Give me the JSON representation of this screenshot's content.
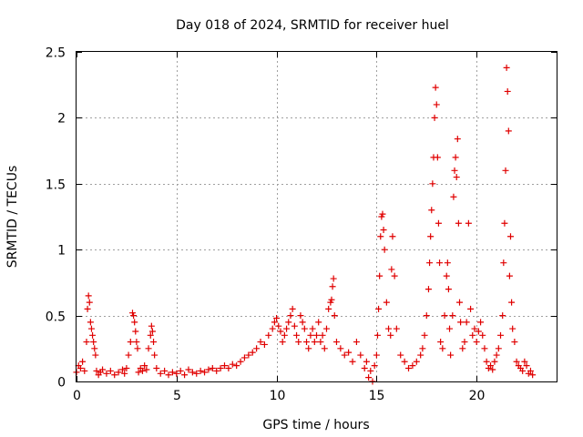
{
  "chart_data": {
    "type": "scatter",
    "title": "Day 018 of 2024, SRMTID for receiver huel",
    "xlabel": "GPS time / hours",
    "ylabel": "SRMTID / TECUs",
    "xlim": [
      0,
      24
    ],
    "ylim": [
      0,
      2.5
    ],
    "xticks": [
      0,
      5,
      10,
      15,
      20
    ],
    "xtick_labels": [
      "0",
      "5",
      "10",
      "15",
      "20"
    ],
    "yticks": [
      0,
      0.5,
      1,
      1.5,
      2,
      2.5
    ],
    "ytick_labels": [
      "0",
      "0.5",
      "1",
      "1.5",
      "2",
      "2.5"
    ],
    "grid": true,
    "marker": "+",
    "color": "#e00000",
    "series": [
      {
        "name": "SRMTID",
        "x": [
          0.0,
          0.1,
          0.2,
          0.3,
          0.4,
          0.5,
          0.55,
          0.6,
          0.65,
          0.7,
          0.75,
          0.8,
          0.85,
          0.9,
          0.95,
          1.0,
          1.1,
          1.2,
          1.3,
          1.5,
          1.7,
          1.9,
          2.1,
          2.3,
          2.4,
          2.5,
          2.6,
          2.7,
          2.8,
          2.85,
          2.9,
          2.95,
          3.0,
          3.05,
          3.1,
          3.2,
          3.3,
          3.4,
          3.5,
          3.6,
          3.7,
          3.75,
          3.8,
          3.85,
          3.9,
          4.0,
          4.2,
          4.4,
          4.6,
          4.8,
          5.0,
          5.2,
          5.4,
          5.6,
          5.8,
          6.0,
          6.2,
          6.4,
          6.6,
          6.8,
          7.0,
          7.2,
          7.4,
          7.6,
          7.8,
          8.0,
          8.2,
          8.4,
          8.6,
          8.8,
          9.0,
          9.2,
          9.4,
          9.6,
          9.8,
          9.9,
          10.0,
          10.1,
          10.2,
          10.3,
          10.4,
          10.5,
          10.6,
          10.7,
          10.8,
          10.9,
          11.0,
          11.1,
          11.2,
          11.3,
          11.4,
          11.5,
          11.6,
          11.7,
          11.8,
          11.9,
          12.0,
          12.1,
          12.2,
          12.3,
          12.4,
          12.5,
          12.6,
          12.7,
          12.75,
          12.8,
          12.85,
          12.9,
          13.0,
          13.2,
          13.4,
          13.6,
          13.8,
          14.0,
          14.2,
          14.4,
          14.5,
          14.6,
          14.7,
          14.8,
          14.9,
          15.0,
          15.05,
          15.1,
          15.15,
          15.2,
          15.25,
          15.3,
          15.35,
          15.4,
          15.5,
          15.6,
          15.7,
          15.75,
          15.8,
          15.9,
          16.0,
          16.2,
          16.4,
          16.6,
          16.8,
          17.0,
          17.2,
          17.3,
          17.4,
          17.5,
          17.6,
          17.65,
          17.7,
          17.75,
          17.8,
          17.85,
          17.9,
          17.95,
          18.0,
          18.05,
          18.1,
          18.15,
          18.2,
          18.3,
          18.4,
          18.5,
          18.55,
          18.6,
          18.65,
          18.7,
          18.8,
          18.85,
          18.9,
          18.95,
          19.0,
          19.05,
          19.1,
          19.15,
          19.2,
          19.3,
          19.4,
          19.5,
          19.6,
          19.7,
          19.8,
          19.9,
          20.0,
          20.1,
          20.2,
          20.3,
          20.4,
          20.5,
          20.6,
          20.7,
          20.8,
          20.9,
          21.0,
          21.1,
          21.2,
          21.3,
          21.35,
          21.4,
          21.45,
          21.5,
          21.55,
          21.6,
          21.65,
          21.7,
          21.75,
          21.8,
          21.9,
          22.0,
          22.1,
          22.2,
          22.3,
          22.4,
          22.5,
          22.6,
          22.7,
          22.8
        ],
        "y": [
          0.07,
          0.12,
          0.1,
          0.15,
          0.08,
          0.3,
          0.55,
          0.65,
          0.6,
          0.45,
          0.4,
          0.35,
          0.3,
          0.25,
          0.2,
          0.08,
          0.05,
          0.07,
          0.09,
          0.06,
          0.08,
          0.05,
          0.07,
          0.09,
          0.06,
          0.1,
          0.2,
          0.3,
          0.52,
          0.5,
          0.45,
          0.38,
          0.3,
          0.25,
          0.07,
          0.1,
          0.08,
          0.12,
          0.09,
          0.25,
          0.35,
          0.42,
          0.38,
          0.3,
          0.2,
          0.1,
          0.06,
          0.08,
          0.05,
          0.07,
          0.06,
          0.08,
          0.05,
          0.09,
          0.07,
          0.06,
          0.08,
          0.07,
          0.09,
          0.1,
          0.08,
          0.1,
          0.12,
          0.1,
          0.13,
          0.12,
          0.15,
          0.18,
          0.2,
          0.22,
          0.25,
          0.3,
          0.28,
          0.35,
          0.4,
          0.45,
          0.48,
          0.42,
          0.38,
          0.3,
          0.35,
          0.4,
          0.45,
          0.5,
          0.55,
          0.42,
          0.35,
          0.3,
          0.5,
          0.45,
          0.4,
          0.3,
          0.25,
          0.35,
          0.4,
          0.3,
          0.35,
          0.45,
          0.3,
          0.35,
          0.25,
          0.4,
          0.55,
          0.6,
          0.62,
          0.72,
          0.78,
          0.5,
          0.3,
          0.25,
          0.2,
          0.22,
          0.15,
          0.3,
          0.2,
          0.1,
          0.15,
          0.03,
          0.08,
          0.0,
          0.12,
          0.2,
          0.35,
          0.55,
          0.8,
          1.1,
          1.25,
          1.27,
          1.15,
          1.0,
          0.6,
          0.4,
          0.35,
          0.85,
          1.1,
          0.8,
          0.4,
          0.2,
          0.15,
          0.1,
          0.12,
          0.15,
          0.2,
          0.25,
          0.35,
          0.5,
          0.7,
          0.9,
          1.1,
          1.3,
          1.5,
          1.7,
          2.0,
          2.23,
          2.1,
          1.7,
          1.2,
          0.9,
          0.3,
          0.25,
          0.5,
          0.8,
          0.9,
          0.7,
          0.4,
          0.2,
          0.5,
          1.4,
          1.6,
          1.7,
          1.55,
          1.84,
          1.2,
          0.6,
          0.45,
          0.25,
          0.3,
          0.45,
          1.2,
          0.55,
          0.35,
          0.4,
          0.3,
          0.38,
          0.45,
          0.35,
          0.25,
          0.15,
          0.1,
          0.12,
          0.09,
          0.15,
          0.2,
          0.25,
          0.35,
          0.5,
          0.9,
          1.2,
          1.6,
          2.38,
          2.2,
          1.9,
          0.8,
          1.1,
          0.6,
          0.4,
          0.3,
          0.15,
          0.12,
          0.1,
          0.08,
          0.15,
          0.12,
          0.06,
          0.08,
          0.05
        ]
      }
    ]
  }
}
